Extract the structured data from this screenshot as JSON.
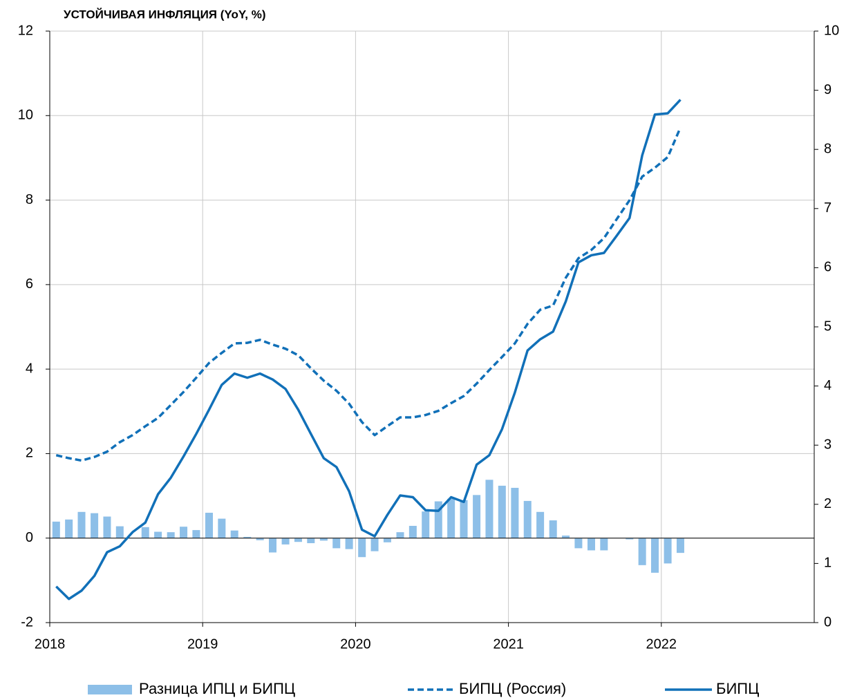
{
  "chart_data": {
    "type": "combo",
    "title": "УСТОЙЧИВАЯ ИНФЛЯЦИЯ (YoY, %)",
    "x": [
      2018.042,
      2018.125,
      2018.208,
      2018.292,
      2018.375,
      2018.458,
      2018.542,
      2018.625,
      2018.708,
      2018.792,
      2018.875,
      2018.958,
      2019.042,
      2019.125,
      2019.208,
      2019.292,
      2019.375,
      2019.458,
      2019.542,
      2019.625,
      2019.708,
      2019.792,
      2019.875,
      2019.958,
      2020.042,
      2020.125,
      2020.208,
      2020.292,
      2020.375,
      2020.458,
      2020.542,
      2020.625,
      2020.708,
      2020.792,
      2020.875,
      2020.958,
      2021.042,
      2021.125,
      2021.208,
      2021.292,
      2021.375,
      2021.458,
      2021.542,
      2021.625,
      2021.708,
      2021.792,
      2021.875,
      2021.958,
      2022.042,
      2022.125
    ],
    "series": [
      {
        "name": "Разница ИПЦ и БИПЦ",
        "type": "bar",
        "color": "#8dbfe8",
        "axis": "y",
        "values": [
          0.39,
          0.44,
          0.62,
          0.59,
          0.51,
          0.28,
          0.0,
          0.26,
          0.15,
          0.14,
          0.27,
          0.19,
          0.6,
          0.46,
          0.18,
          0.03,
          -0.05,
          -0.34,
          -0.15,
          -0.09,
          -0.12,
          -0.06,
          -0.24,
          -0.26,
          -0.45,
          -0.31,
          -0.1,
          0.14,
          0.29,
          0.63,
          0.87,
          0.93,
          0.9,
          1.02,
          1.38,
          1.24,
          1.19,
          0.88,
          0.62,
          0.42,
          0.06,
          -0.24,
          -0.29,
          -0.29,
          0.0,
          -0.03,
          -0.64,
          -0.82,
          -0.6,
          -0.35
        ]
      },
      {
        "name": "БИПЦ (Россия)",
        "type": "line",
        "dashed": true,
        "color": "#1170b8",
        "axis": "y2",
        "values": [
          2.83,
          2.78,
          2.74,
          2.8,
          2.89,
          3.05,
          3.17,
          3.32,
          3.46,
          3.68,
          3.9,
          4.14,
          4.39,
          4.56,
          4.72,
          4.73,
          4.78,
          4.7,
          4.63,
          4.52,
          4.3,
          4.09,
          3.92,
          3.7,
          3.39,
          3.17,
          3.32,
          3.47,
          3.47,
          3.51,
          3.58,
          3.71,
          3.83,
          4.04,
          4.27,
          4.49,
          4.72,
          5.05,
          5.29,
          5.36,
          5.83,
          6.16,
          6.3,
          6.5,
          6.82,
          7.14,
          7.54,
          7.69,
          7.87,
          8.37
        ]
      },
      {
        "name": "БИПЦ",
        "type": "line",
        "dashed": false,
        "color": "#1170b8",
        "axis": "y2",
        "values": [
          0.61,
          0.4,
          0.54,
          0.79,
          1.19,
          1.29,
          1.53,
          1.69,
          2.17,
          2.45,
          2.81,
          3.19,
          3.6,
          4.02,
          4.21,
          4.14,
          4.21,
          4.11,
          3.95,
          3.6,
          3.19,
          2.78,
          2.63,
          2.22,
          1.57,
          1.46,
          1.82,
          2.15,
          2.12,
          1.9,
          1.89,
          2.12,
          2.04,
          2.67,
          2.83,
          3.27,
          3.89,
          4.6,
          4.79,
          4.92,
          5.43,
          6.09,
          6.21,
          6.25,
          6.54,
          6.84,
          7.9,
          8.59,
          8.61,
          8.84
        ]
      }
    ],
    "xlim": [
      2018,
      2023
    ],
    "xticks": [
      2018,
      2019,
      2020,
      2021,
      2022
    ],
    "ylim": [
      -2,
      12
    ],
    "yticks": [
      -2,
      0,
      2,
      4,
      6,
      8,
      10,
      12
    ],
    "y2lim": [
      0,
      10
    ],
    "y2ticks": [
      0,
      1,
      2,
      3,
      4,
      5,
      6,
      7,
      8,
      9,
      10
    ],
    "grid": true,
    "legend": "bottom"
  }
}
